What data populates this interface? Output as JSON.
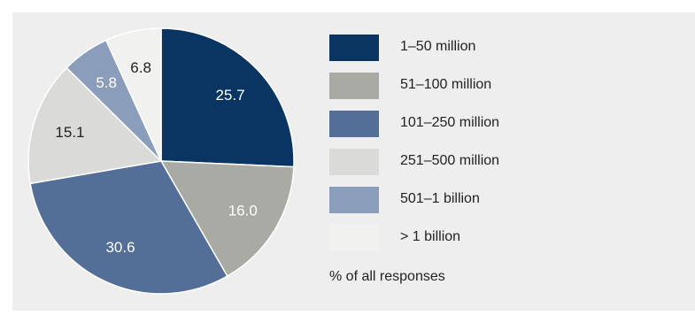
{
  "chart_data": {
    "type": "pie",
    "note": "% of all responses",
    "slices": [
      {
        "label": "1–50 million",
        "value": 25.7,
        "color": "#0a3563",
        "label_color": "#ffffff"
      },
      {
        "label": "51–100 million",
        "value": 16.0,
        "color": "#a9aaa3",
        "label_color": "#ffffff"
      },
      {
        "label": "101–250 million",
        "value": 30.6,
        "color": "#536f98",
        "label_color": "#ffffff"
      },
      {
        "label": "251–500 million",
        "value": 15.1,
        "color": "#dadbd9",
        "label_color": "#222222"
      },
      {
        "label": "501–1 billion",
        "value": 5.8,
        "color": "#8a9dbb",
        "label_color": "#ffffff"
      },
      {
        "label": "> 1 billion",
        "value": 6.8,
        "color": "#f1f1f0",
        "label_color": "#222222"
      }
    ]
  }
}
